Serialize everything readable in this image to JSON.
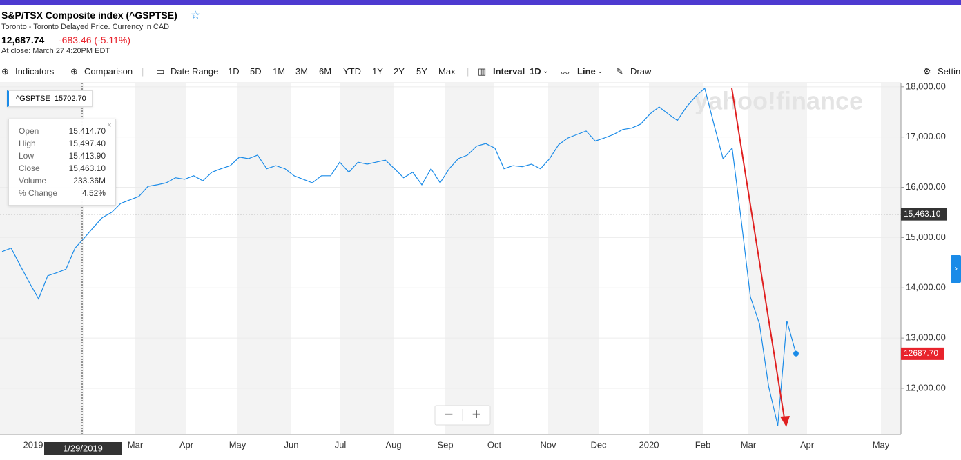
{
  "header": {
    "title": "S&P/TSX Composite index (^GSPTSE)",
    "subtitle": "Toronto - Toronto Delayed Price. Currency in CAD",
    "price": "12,687.74",
    "change": "-683.46 (-5.11%)",
    "close_time": "At close: March 27 4:20PM EDT"
  },
  "toolbar": {
    "indicators": "Indicators",
    "comparison": "Comparison",
    "date_range": "Date Range",
    "ranges": [
      "1D",
      "5D",
      "1M",
      "3M",
      "6M",
      "YTD",
      "1Y",
      "2Y",
      "5Y",
      "Max"
    ],
    "interval": "Interval",
    "interval_value": "1D",
    "line": "Line",
    "draw": "Draw",
    "settings": "Settin"
  },
  "tooltip": {
    "rows": [
      [
        "Open",
        "15,414.70"
      ],
      [
        "High",
        "15,497.40"
      ],
      [
        "Low",
        "15,413.90"
      ],
      [
        "Close",
        "15,463.10"
      ],
      [
        "Volume",
        "233.36M"
      ],
      [
        "% Change",
        "4.52%"
      ]
    ]
  },
  "watermark": "yahoo!finance",
  "chart_data": {
    "type": "line",
    "legend": {
      "symbol": "^GSPTSE",
      "value": "15702.70"
    },
    "series": [
      {
        "name": "^GSPTSE",
        "color": "#1a8be8",
        "values": [
          14720,
          14790,
          14440,
          14100,
          13780,
          14240,
          14300,
          14370,
          14790,
          14990,
          15200,
          15400,
          15500,
          15680,
          15750,
          15820,
          16020,
          16050,
          16090,
          16190,
          16160,
          16230,
          16130,
          16300,
          16370,
          16430,
          16600,
          16570,
          16640,
          16370,
          16430,
          16370,
          16230,
          16160,
          16090,
          16230,
          16230,
          16500,
          16300,
          16500,
          16460,
          16500,
          16540,
          16370,
          16190,
          16300,
          16050,
          16370,
          16090,
          16370,
          16570,
          16640,
          16820,
          16870,
          16780,
          16370,
          16430,
          16410,
          16460,
          16370,
          16570,
          16850,
          16980,
          17050,
          17120,
          16920,
          16980,
          17050,
          17150,
          17180,
          17260,
          17460,
          17600,
          17460,
          17330,
          17600,
          17810,
          17970,
          17260,
          16570,
          16780,
          15340,
          13820,
          13280,
          12040,
          11260,
          13340,
          12690
        ]
      }
    ],
    "xticks": [
      "2019",
      null,
      "Mar",
      "Apr",
      "May",
      "Jun",
      "Jul",
      "Aug",
      "Sep",
      "Oct",
      "Nov",
      "Dec",
      "2020",
      "Feb",
      "Mar",
      "Apr",
      "May"
    ],
    "ylim": [
      11080,
      18080
    ],
    "yticks": [
      {
        "value": 12000,
        "label": "12,000.00"
      },
      {
        "value": 13000,
        "label": "13,000.00"
      },
      {
        "value": 14000,
        "label": "14,000.00"
      },
      {
        "value": 15000,
        "label": "15,000.00"
      },
      {
        "value": 16000,
        "label": "16,000.00"
      },
      {
        "value": 17000,
        "label": "17,000.00"
      },
      {
        "value": 18000,
        "label": "18,000.00"
      }
    ],
    "grid": true,
    "crosshair": {
      "value": 15463.1,
      "label": "15,463.10",
      "date": "1/29/2019"
    },
    "last_price": {
      "value": 12687.7,
      "label": "12687.70"
    }
  }
}
